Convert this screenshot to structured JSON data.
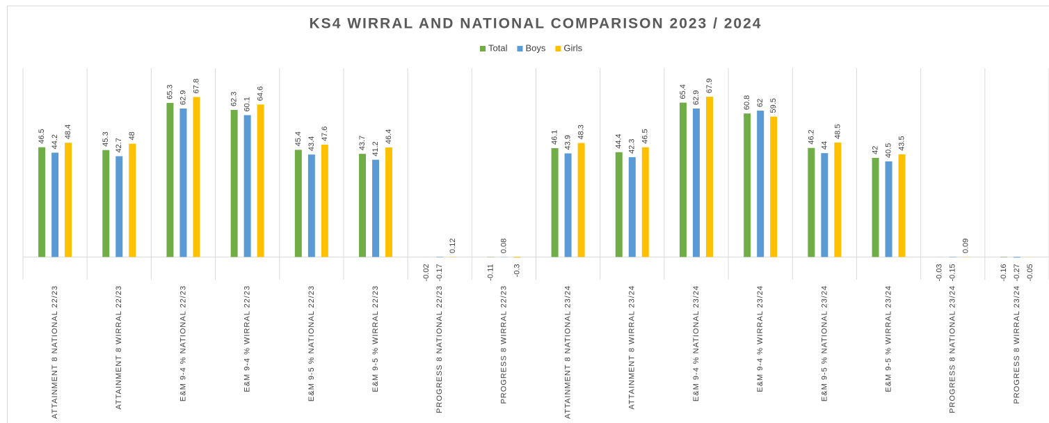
{
  "chart_data": {
    "type": "bar",
    "title": "KS4 WIRRAL AND NATIONAL COMPARISON 2023 / 2024",
    "categories": [
      "ATTAINMENT 8 NATIONAL 22/23",
      "ATTAINMENT 8 WIRRAL 22/23",
      "E&M 9-4 % NATIONAL 22/23",
      "E&M 9-4 % WIRRAL 22/23",
      "E&M 9-5 % NATIONAL 22/23",
      "E&M 9-5 % WIRRAL 22/23",
      "PROGRESS 8 NATIONAL 22/23",
      "PROGRESS 8 WIRRAL 22/23",
      "ATTAINMENT 8 NATIONAL 23/24",
      "ATTAINMENT 8 WIRRAL 23/24",
      "E&M 9-4 % NATIONAL 23/24",
      "E&M 9-4 % WIRRAL 23/24",
      "E&M 9-5 % NATIONAL 23/24",
      "E&M 9-5 % WIRRAL 23/24",
      "PROGRESS 8 NATIONAL 23/24",
      "PROGRESS 8 WIRRAL 23/24"
    ],
    "series": [
      {
        "name": "Total",
        "color": "#70ad47",
        "values": [
          46.5,
          45.3,
          65.3,
          62.3,
          45.4,
          43.7,
          -0.02,
          -0.11,
          46.1,
          44.4,
          65.4,
          60.8,
          46.2,
          42,
          -0.03,
          -0.16
        ]
      },
      {
        "name": "Boys",
        "color": "#5b9bd5",
        "values": [
          44.2,
          42.7,
          62.9,
          60.1,
          43.4,
          41.2,
          -0.17,
          0.08,
          43.9,
          42.3,
          62.9,
          62,
          44,
          40.5,
          -0.15,
          -0.27
        ]
      },
      {
        "name": "Girls",
        "color": "#ffc000",
        "values": [
          48.4,
          48,
          67.8,
          64.6,
          47.6,
          46.4,
          0.12,
          -0.3,
          48.3,
          46.5,
          67.9,
          59.5,
          48.5,
          43.5,
          0.09,
          -0.05
        ]
      }
    ],
    "ylim": [
      -68,
      80
    ],
    "legend": "top"
  }
}
